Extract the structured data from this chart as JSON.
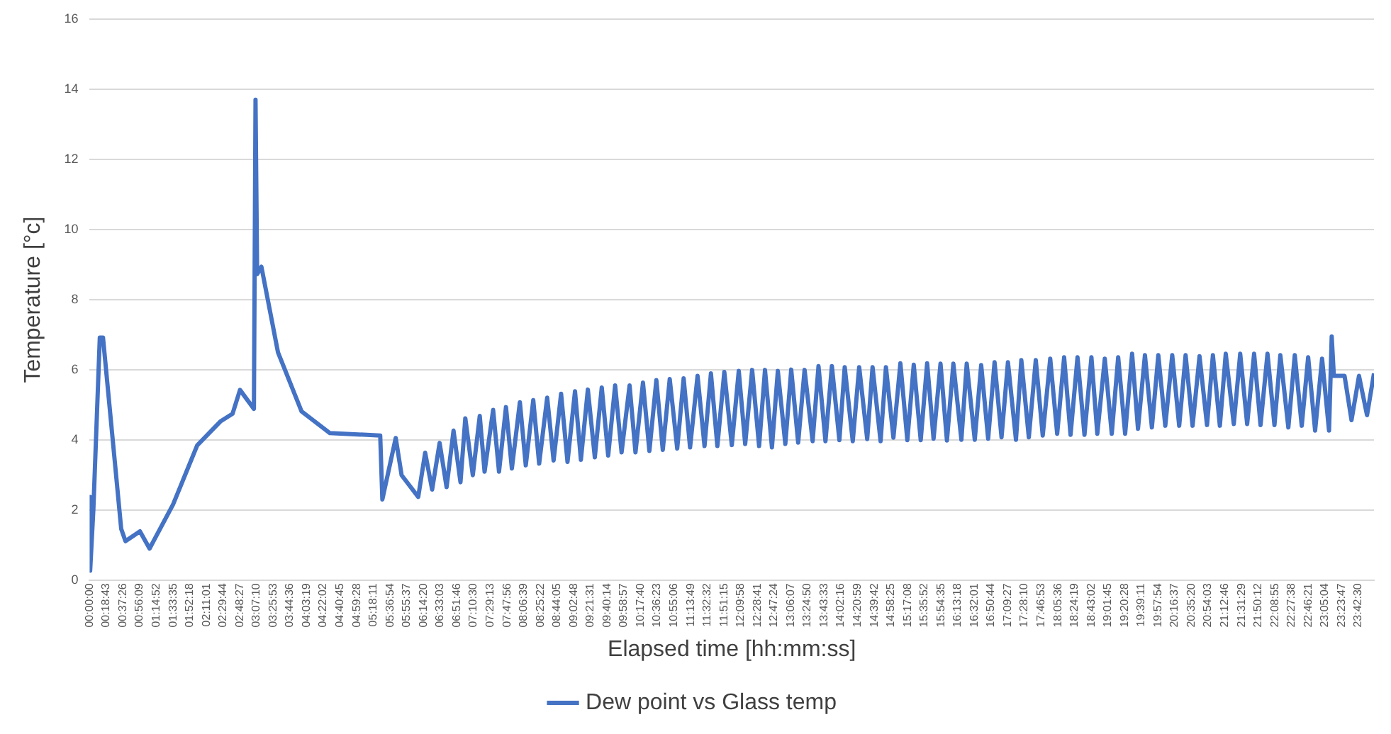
{
  "chart_data": {
    "type": "line",
    "xlabel": "Elapsed time [hh:mm:ss]",
    "ylabel": "Temperature [°c]",
    "grid": "y",
    "legend": "bottom",
    "marker": "none",
    "line_style": "solid",
    "xlim": [
      0,
      24.0
    ],
    "ylim": [
      0,
      16
    ],
    "yticks": [
      0,
      2,
      4,
      6,
      8,
      10,
      12,
      14,
      16
    ],
    "xticks": [
      {
        "value": 0,
        "label": "00:00:00"
      },
      {
        "value": 0.3119,
        "label": "00:18:43"
      },
      {
        "value": 0.6239,
        "label": "00:37:26"
      },
      {
        "value": 0.9358,
        "label": "00:56:09"
      },
      {
        "value": 1.2478,
        "label": "01:14:52"
      },
      {
        "value": 1.5597,
        "label": "01:33:35"
      },
      {
        "value": 1.8717,
        "label": "01:52:18"
      },
      {
        "value": 2.1836,
        "label": "02:11:01"
      },
      {
        "value": 2.4956,
        "label": "02:29:44"
      },
      {
        "value": 2.8075,
        "label": "02:48:27"
      },
      {
        "value": 3.1194,
        "label": "03:07:10"
      },
      {
        "value": 3.4314,
        "label": "03:25:53"
      },
      {
        "value": 3.7433,
        "label": "03:44:36"
      },
      {
        "value": 4.0553,
        "label": "04:03:19"
      },
      {
        "value": 4.3672,
        "label": "04:22:02"
      },
      {
        "value": 4.6792,
        "label": "04:40:45"
      },
      {
        "value": 4.9911,
        "label": "04:59:28"
      },
      {
        "value": 5.3031,
        "label": "05:18:11"
      },
      {
        "value": 5.615,
        "label": "05:36:54"
      },
      {
        "value": 5.9269,
        "label": "05:55:37"
      },
      {
        "value": 6.2389,
        "label": "06:14:20"
      },
      {
        "value": 6.5508,
        "label": "06:33:03"
      },
      {
        "value": 6.8628,
        "label": "06:51:46"
      },
      {
        "value": 7.175,
        "label": "07:10:30"
      },
      {
        "value": 7.4869,
        "label": "07:29:13"
      },
      {
        "value": 7.7989,
        "label": "07:47:56"
      },
      {
        "value": 8.1108,
        "label": "08:06:39"
      },
      {
        "value": 8.4228,
        "label": "08:25:22"
      },
      {
        "value": 8.7347,
        "label": "08:44:05"
      },
      {
        "value": 9.0467,
        "label": "09:02:48"
      },
      {
        "value": 9.3586,
        "label": "09:21:31"
      },
      {
        "value": 9.6706,
        "label": "09:40:14"
      },
      {
        "value": 9.9825,
        "label": "09:58:57"
      },
      {
        "value": 10.2944,
        "label": "10:17:40"
      },
      {
        "value": 10.6064,
        "label": "10:36:23"
      },
      {
        "value": 10.9183,
        "label": "10:55:06"
      },
      {
        "value": 11.2303,
        "label": "11:13:49"
      },
      {
        "value": 11.5422,
        "label": "11:32:32"
      },
      {
        "value": 11.8542,
        "label": "11:51:15"
      },
      {
        "value": 12.1661,
        "label": "12:09:58"
      },
      {
        "value": 12.4781,
        "label": "12:28:41"
      },
      {
        "value": 12.79,
        "label": "12:47:24"
      },
      {
        "value": 13.1019,
        "label": "13:06:07"
      },
      {
        "value": 13.4139,
        "label": "13:24:50"
      },
      {
        "value": 13.7258,
        "label": "13:43:33"
      },
      {
        "value": 14.0378,
        "label": "14:02:16"
      },
      {
        "value": 14.3497,
        "label": "14:20:59"
      },
      {
        "value": 14.6617,
        "label": "14:39:42"
      },
      {
        "value": 14.9736,
        "label": "14:58:25"
      },
      {
        "value": 15.2856,
        "label": "15:17:08"
      },
      {
        "value": 15.5978,
        "label": "15:35:52"
      },
      {
        "value": 15.9097,
        "label": "15:54:35"
      },
      {
        "value": 16.2217,
        "label": "16:13:18"
      },
      {
        "value": 16.5336,
        "label": "16:32:01"
      },
      {
        "value": 16.8456,
        "label": "16:50:44"
      },
      {
        "value": 17.1575,
        "label": "17:09:27"
      },
      {
        "value": 17.4694,
        "label": "17:28:10"
      },
      {
        "value": 17.7814,
        "label": "17:46:53"
      },
      {
        "value": 18.0933,
        "label": "18:05:36"
      },
      {
        "value": 18.4053,
        "label": "18:24:19"
      },
      {
        "value": 18.7172,
        "label": "18:43:02"
      },
      {
        "value": 19.0292,
        "label": "19:01:45"
      },
      {
        "value": 19.3411,
        "label": "19:20:28"
      },
      {
        "value": 19.6531,
        "label": "19:39:11"
      },
      {
        "value": 19.965,
        "label": "19:57:54"
      },
      {
        "value": 20.2769,
        "label": "20:16:37"
      },
      {
        "value": 20.5889,
        "label": "20:35:20"
      },
      {
        "value": 20.9008,
        "label": "20:54:03"
      },
      {
        "value": 21.2128,
        "label": "21:12:46"
      },
      {
        "value": 21.5247,
        "label": "21:31:29"
      },
      {
        "value": 21.8367,
        "label": "21:50:12"
      },
      {
        "value": 22.1486,
        "label": "22:08:55"
      },
      {
        "value": 22.4606,
        "label": "22:27:38"
      },
      {
        "value": 22.7725,
        "label": "22:46:21"
      },
      {
        "value": 23.0844,
        "label": "23:05:04"
      },
      {
        "value": 23.3964,
        "label": "23:23:47"
      },
      {
        "value": 23.7083,
        "label": "23:42:30"
      }
    ],
    "series": [
      {
        "name": "Dew point vs Glass temp",
        "color": "#4472c4",
        "x": [
          0,
          0.01,
          0.07,
          0.19,
          0.25,
          0.59,
          0.67,
          0.94,
          1.12,
          1.56,
          2.01,
          2.45,
          2.67,
          2.81,
          3.07,
          3.1,
          3.13,
          3.21,
          3.52,
          3.96,
          4.49,
          5.43,
          5.47,
          5.72,
          5.83,
          6.14,
          6.27,
          6.4,
          6.54,
          6.67,
          6.8,
          6.93,
          7.02,
          7.16,
          7.29,
          7.38,
          7.54,
          7.65,
          7.78,
          7.89,
          8.04,
          8.15,
          8.29,
          8.4,
          8.55,
          8.67,
          8.81,
          8.93,
          9.07,
          9.18,
          9.31,
          9.44,
          9.57,
          9.69,
          9.82,
          9.94,
          10.09,
          10.2,
          10.34,
          10.46,
          10.59,
          10.71,
          10.84,
          10.98,
          11.1,
          11.22,
          11.36,
          11.49,
          11.61,
          11.73,
          11.86,
          12.0,
          12.13,
          12.25,
          12.38,
          12.51,
          12.62,
          12.75,
          12.86,
          13.0,
          13.11,
          13.24,
          13.36,
          13.51,
          13.62,
          13.75,
          13.87,
          14.01,
          14.11,
          14.26,
          14.38,
          14.53,
          14.63,
          14.78,
          14.88,
          15.02,
          15.15,
          15.28,
          15.4,
          15.53,
          15.65,
          15.77,
          15.9,
          16.02,
          16.14,
          16.29,
          16.39,
          16.54,
          16.66,
          16.79,
          16.91,
          17.04,
          17.16,
          17.31,
          17.41,
          17.55,
          17.68,
          17.81,
          17.95,
          18.08,
          18.21,
          18.33,
          18.46,
          18.59,
          18.72,
          18.83,
          18.97,
          19.1,
          19.22,
          19.35,
          19.48,
          19.59,
          19.72,
          19.85,
          19.97,
          20.1,
          20.23,
          20.36,
          20.48,
          20.61,
          20.74,
          20.88,
          20.99,
          21.12,
          21.23,
          21.38,
          21.5,
          21.63,
          21.76,
          21.88,
          22.01,
          22.14,
          22.25,
          22.4,
          22.52,
          22.65,
          22.77,
          22.9,
          23.03,
          23.16,
          23.21,
          23.25,
          23.45,
          23.58,
          23.72,
          23.87,
          24.0
        ],
        "values": [
          2.38,
          0.28,
          2.03,
          6.92,
          6.92,
          1.47,
          1.12,
          1.4,
          0.91,
          2.17,
          3.85,
          4.54,
          4.75,
          5.43,
          4.89,
          13.7,
          8.73,
          8.94,
          6.5,
          4.82,
          4.2,
          4.13,
          2.31,
          4.06,
          3.0,
          2.38,
          3.64,
          2.59,
          3.92,
          2.66,
          4.27,
          2.8,
          4.62,
          3.0,
          4.69,
          3.1,
          4.86,
          3.1,
          4.94,
          3.19,
          5.08,
          3.28,
          5.14,
          3.33,
          5.21,
          3.42,
          5.32,
          3.38,
          5.39,
          3.44,
          5.44,
          3.51,
          5.5,
          3.56,
          5.56,
          3.65,
          5.56,
          3.65,
          5.64,
          3.69,
          5.71,
          3.72,
          5.74,
          3.76,
          5.76,
          3.79,
          5.83,
          3.83,
          5.9,
          3.83,
          5.94,
          3.86,
          5.97,
          3.89,
          6.0,
          3.83,
          6.0,
          3.79,
          5.97,
          3.89,
          6.01,
          3.93,
          6.0,
          3.97,
          6.11,
          3.97,
          6.11,
          4.0,
          6.08,
          3.97,
          6.08,
          4.03,
          6.08,
          3.97,
          6.08,
          4.07,
          6.19,
          4.0,
          6.15,
          4.0,
          6.19,
          4.04,
          6.18,
          3.99,
          6.18,
          4.01,
          6.18,
          4.01,
          6.14,
          4.04,
          6.22,
          4.08,
          6.22,
          4.01,
          6.28,
          4.08,
          6.28,
          4.13,
          6.32,
          4.18,
          6.36,
          4.15,
          6.36,
          4.15,
          6.36,
          4.18,
          6.32,
          4.18,
          6.36,
          4.18,
          6.46,
          4.32,
          6.42,
          4.36,
          6.42,
          4.41,
          6.42,
          4.41,
          6.42,
          4.41,
          6.39,
          4.43,
          6.42,
          4.41,
          6.46,
          4.46,
          6.46,
          4.46,
          6.46,
          4.43,
          6.46,
          4.43,
          6.42,
          4.36,
          6.42,
          4.41,
          6.36,
          4.27,
          6.32,
          4.27,
          6.95,
          5.83,
          5.83,
          4.57,
          5.83,
          4.71,
          5.9
        ]
      }
    ]
  }
}
